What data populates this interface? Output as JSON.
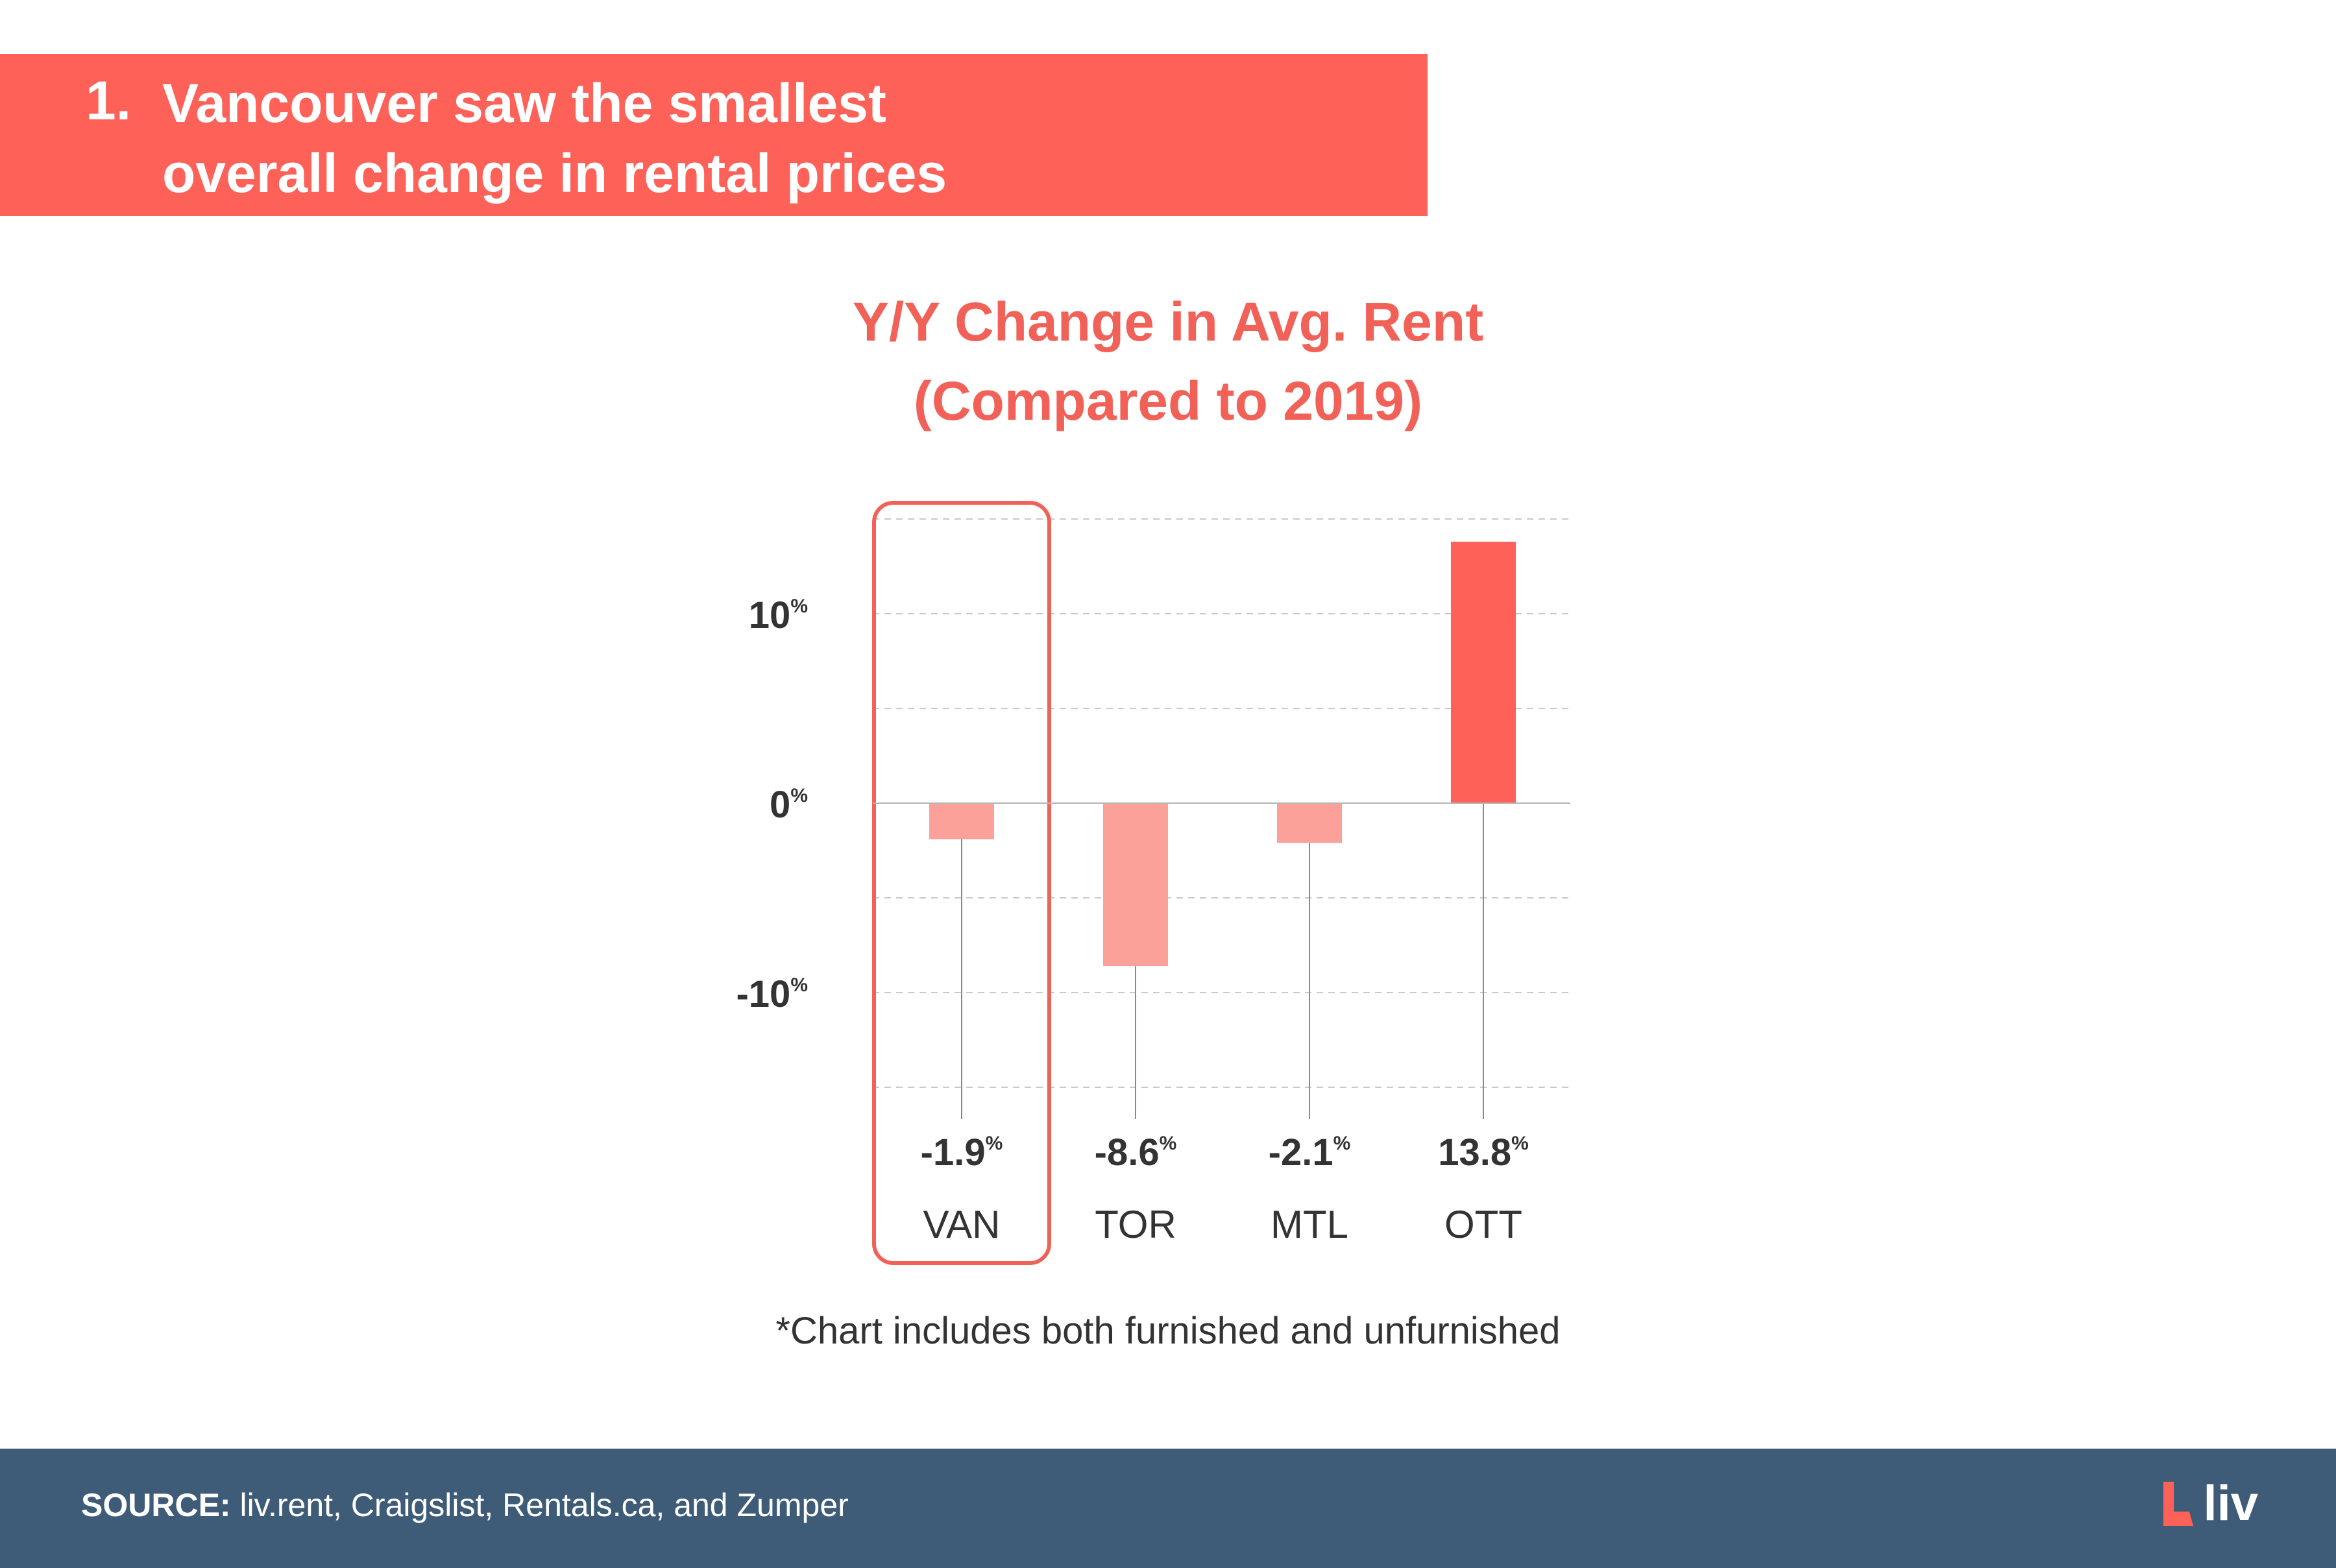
{
  "banner": {
    "number": "1.",
    "line1": "Vancouver saw the smallest",
    "line2": "overall change in rental prices",
    "color": "#fe6158"
  },
  "chart_data": {
    "type": "bar",
    "title_line1": "Y/Y Change in Avg. Rent",
    "title_line2": "(Compared to 2019)",
    "categories": [
      "VAN",
      "TOR",
      "MTL",
      "OTT"
    ],
    "values": [
      -1.9,
      -8.6,
      -2.1,
      13.8
    ],
    "value_labels": [
      "-1.9",
      "-8.6",
      "-2.1",
      "13.8"
    ],
    "unit_suffix": "%",
    "y_ticks": [
      {
        "value": 10,
        "label": "10"
      },
      {
        "value": 0,
        "label": "0"
      },
      {
        "value": -10,
        "label": "-10"
      }
    ],
    "gridlines": [
      15,
      10,
      5,
      -5,
      -10,
      -15
    ],
    "ylim": [
      -15,
      15
    ],
    "grid": true,
    "highlight_category": "VAN",
    "colors": {
      "positive": "#fe6158",
      "negative": "#fca19a",
      "highlight_box": "#f26157",
      "title": "#f26157",
      "text": "#333333"
    }
  },
  "footnote": "*Chart includes both furnished and unfurnished",
  "footer": {
    "source_label": "SOURCE:",
    "source_text": " liv.rent, Craigslist, Rentals.ca, and Zumper",
    "logo_text": "liv",
    "background": "#3e5b78"
  }
}
